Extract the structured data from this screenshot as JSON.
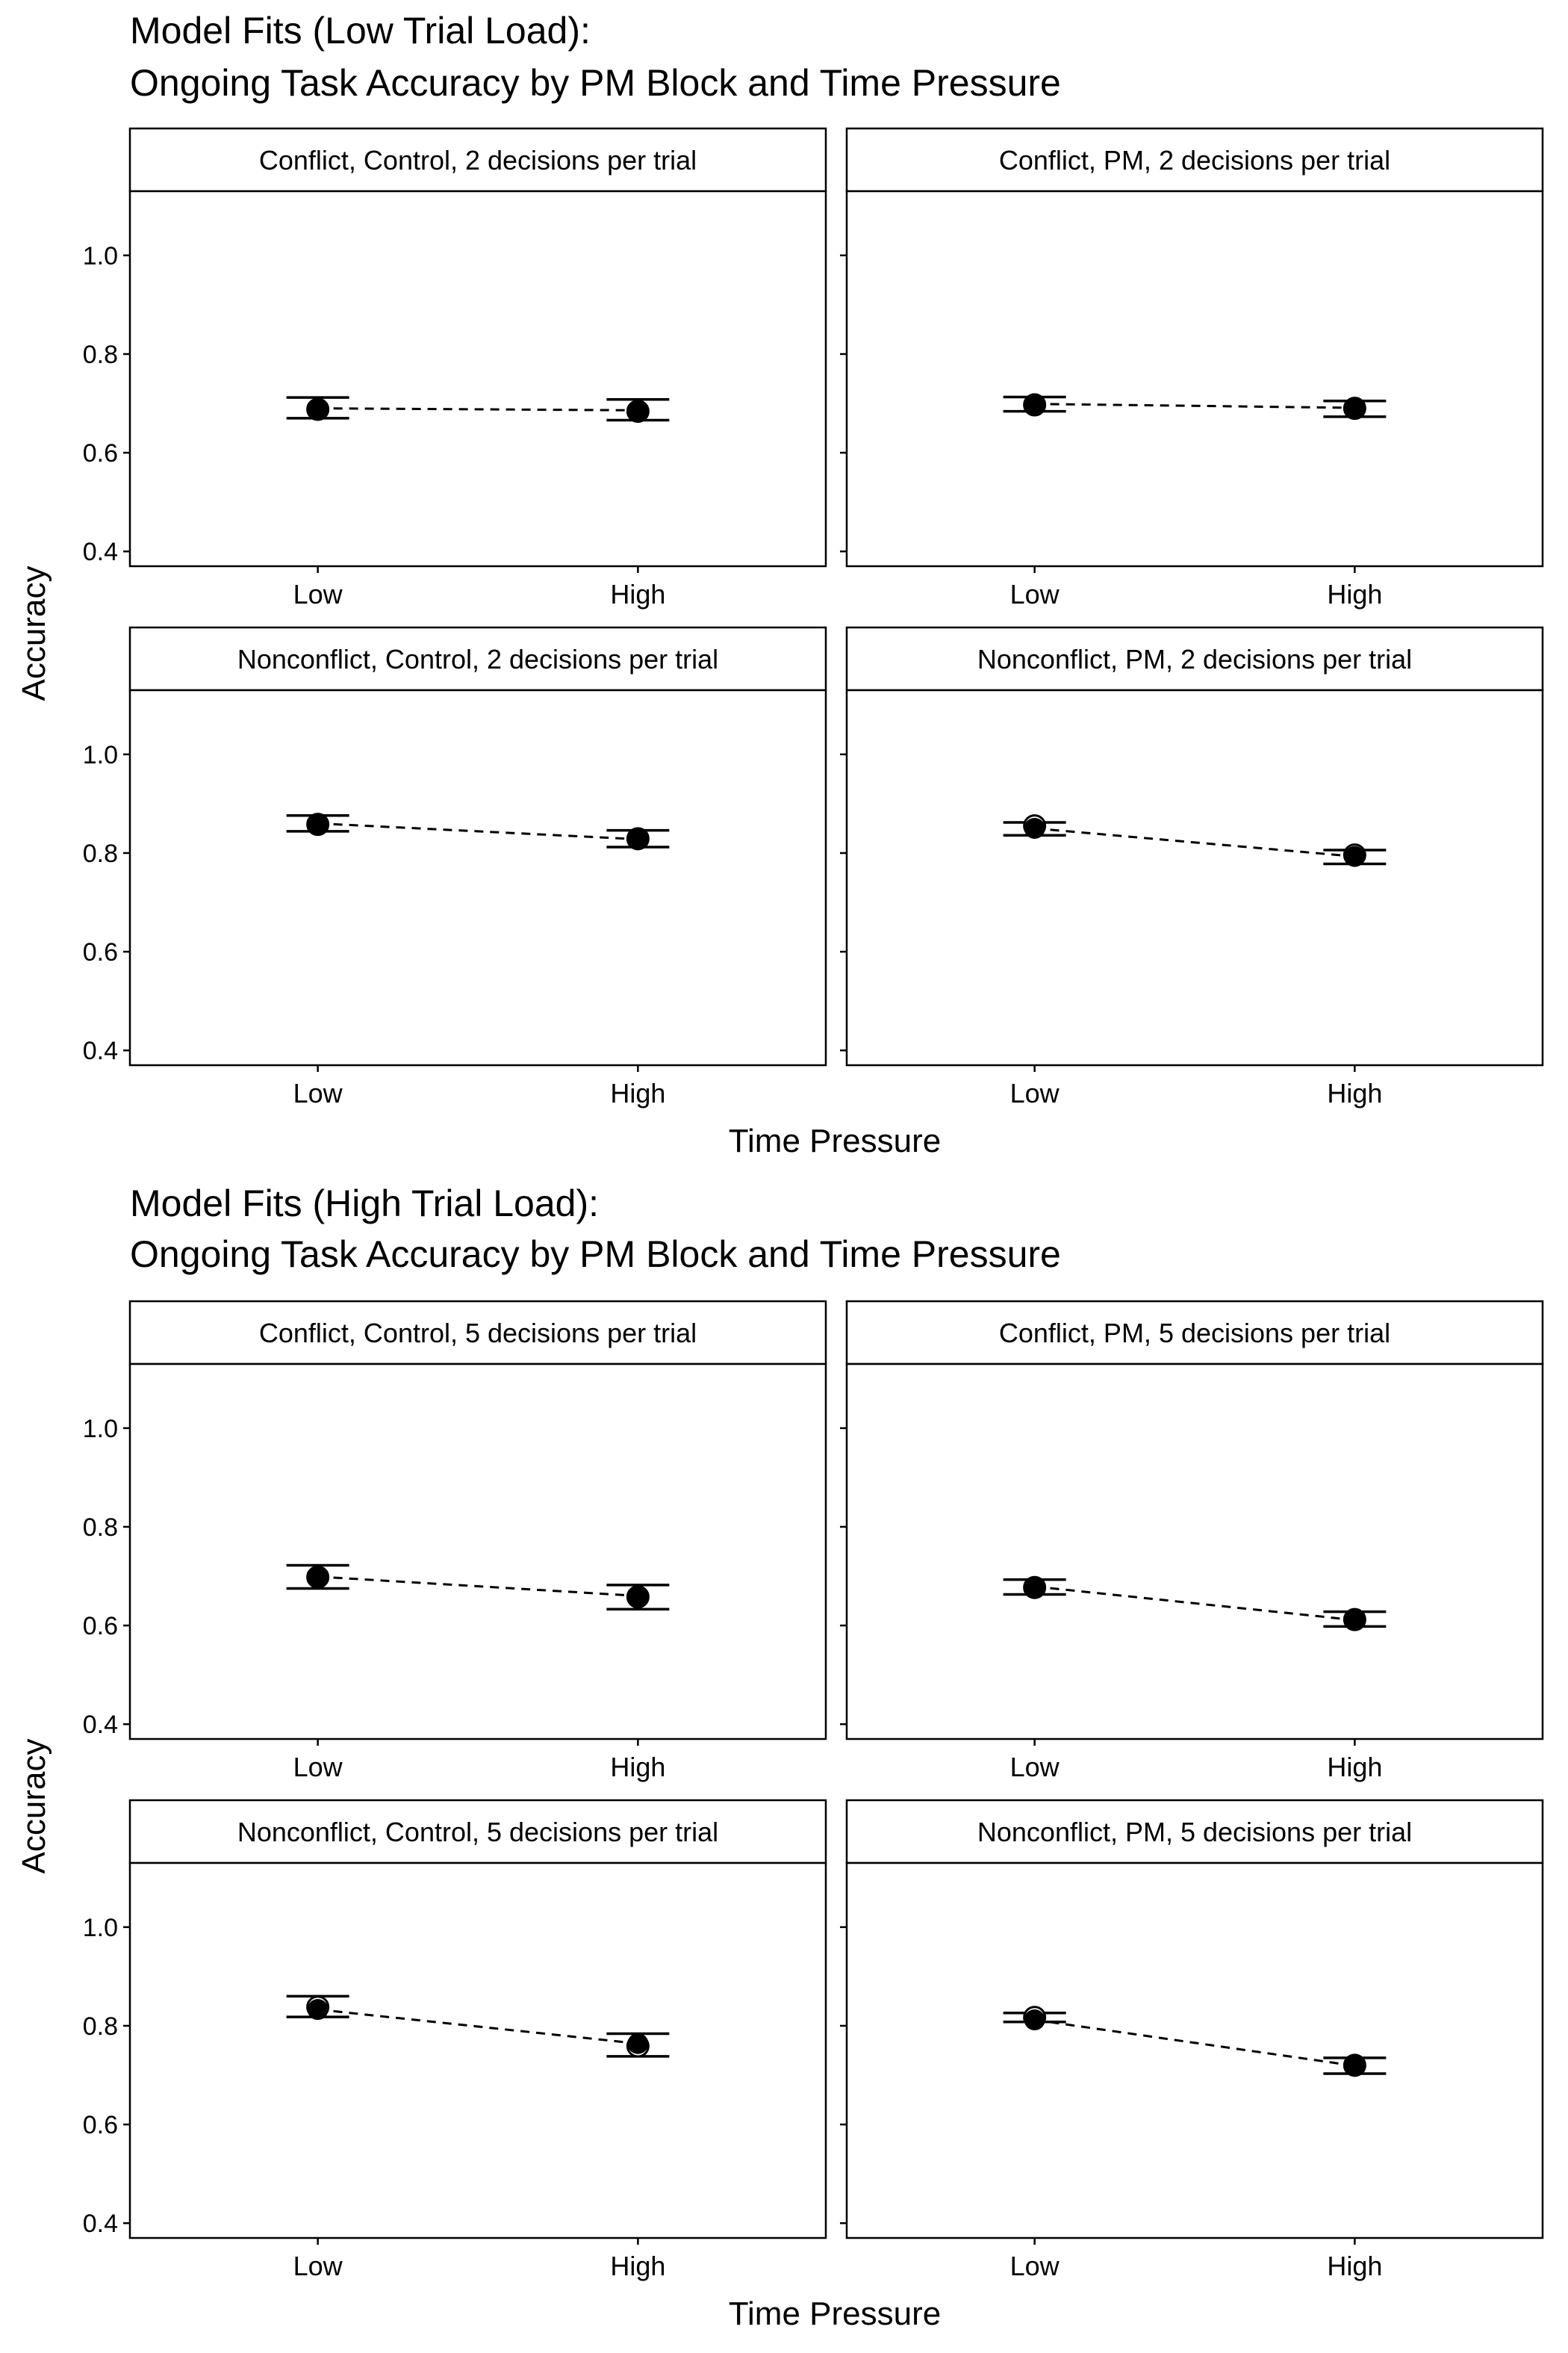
{
  "chart_data": [
    {
      "type": "scatter",
      "title": "Model Fits (Low Trial Load):",
      "subtitle": "Ongoing Task Accuracy by PM Block and Time Pressure",
      "xlabel": "Time Pressure",
      "ylabel": "Accuracy",
      "categories": [
        "Low",
        "High"
      ],
      "yticks": [
        "0.4",
        "0.6",
        "0.8",
        "1.0"
      ],
      "ylim": [
        0.37,
        1.13
      ],
      "grid": false,
      "panels": [
        {
          "strip": "Conflict, Control, 2 decisions per trial",
          "observed": [
            0.688,
            0.684
          ],
          "model": [
            0.69,
            0.686
          ],
          "ci_low": [
            0.67,
            0.666
          ],
          "ci_high": [
            0.712,
            0.708
          ]
        },
        {
          "strip": "Conflict, PM, 2 decisions per trial",
          "observed": [
            0.697,
            0.69
          ],
          "model": [
            0.699,
            0.691
          ],
          "ci_low": [
            0.684,
            0.673
          ],
          "ci_high": [
            0.713,
            0.705
          ]
        },
        {
          "strip": "Nonconflict, Control, 2 decisions per trial",
          "observed": [
            0.858,
            0.829
          ],
          "model": [
            0.86,
            0.828
          ],
          "ci_low": [
            0.844,
            0.812
          ],
          "ci_high": [
            0.876,
            0.846
          ]
        },
        {
          "strip": "Nonconflict, PM, 2 decisions per trial",
          "observed": [
            0.855,
            0.796
          ],
          "model": [
            0.85,
            0.793
          ],
          "ci_low": [
            0.836,
            0.778
          ],
          "ci_high": [
            0.862,
            0.806
          ]
        }
      ]
    },
    {
      "type": "scatter",
      "title": "Model Fits (High Trial Load):",
      "subtitle": "Ongoing Task Accuracy by PM Block and Time Pressure",
      "xlabel": "Time Pressure",
      "ylabel": "Accuracy",
      "categories": [
        "Low",
        "High"
      ],
      "yticks": [
        "0.4",
        "0.6",
        "0.8",
        "1.0"
      ],
      "ylim": [
        0.37,
        1.13
      ],
      "grid": false,
      "panels": [
        {
          "strip": "Conflict, Control, 5 decisions per trial",
          "observed": [
            0.698,
            0.658
          ],
          "model": [
            0.699,
            0.66
          ],
          "ci_low": [
            0.675,
            0.633
          ],
          "ci_high": [
            0.722,
            0.682
          ]
        },
        {
          "strip": "Conflict, PM, 5 decisions per trial",
          "observed": [
            0.677,
            0.612
          ],
          "model": [
            0.679,
            0.611
          ],
          "ci_low": [
            0.663,
            0.598
          ],
          "ci_high": [
            0.693,
            0.628
          ]
        },
        {
          "strip": "Nonconflict, Control, 5 decisions per trial",
          "observed": [
            0.838,
            0.759
          ],
          "model": [
            0.833,
            0.764
          ],
          "ci_low": [
            0.818,
            0.738
          ],
          "ci_high": [
            0.86,
            0.784
          ]
        },
        {
          "strip": "Nonconflict, PM, 5 decisions per trial",
          "observed": [
            0.817,
            0.72
          ],
          "model": [
            0.812,
            0.719
          ],
          "ci_low": [
            0.808,
            0.703
          ],
          "ci_high": [
            0.826,
            0.735
          ]
        }
      ]
    }
  ]
}
